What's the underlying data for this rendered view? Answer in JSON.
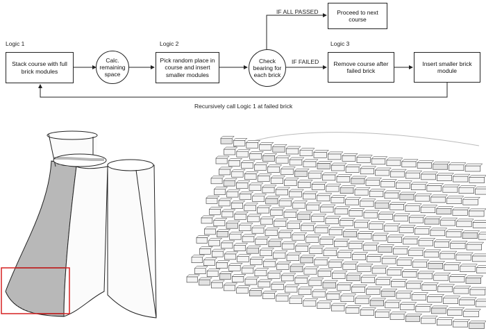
{
  "flow": {
    "logic1": "Logic 1",
    "logic2": "Logic 2",
    "logic3": "Logic 3",
    "stack": "Stack course with full brick modules",
    "calc": "Calc. remaining space",
    "pick": "Pick random place in course and insert smaller modules",
    "check": "Check bearing for each brick",
    "proceed": "Proceed to next course",
    "remove": "Remove course after failed brick",
    "insert": "Insert smaller brick module",
    "if_passed": "IF ALL PASSED",
    "if_failed": "IF FAILED",
    "recursive": "Recursively call Logic 1 at failed brick"
  },
  "colors": {
    "line": "#222222",
    "highlight_box": "#d62020",
    "failed_brick": "#e0151b",
    "smaller_brick": "#4fb9d3"
  }
}
